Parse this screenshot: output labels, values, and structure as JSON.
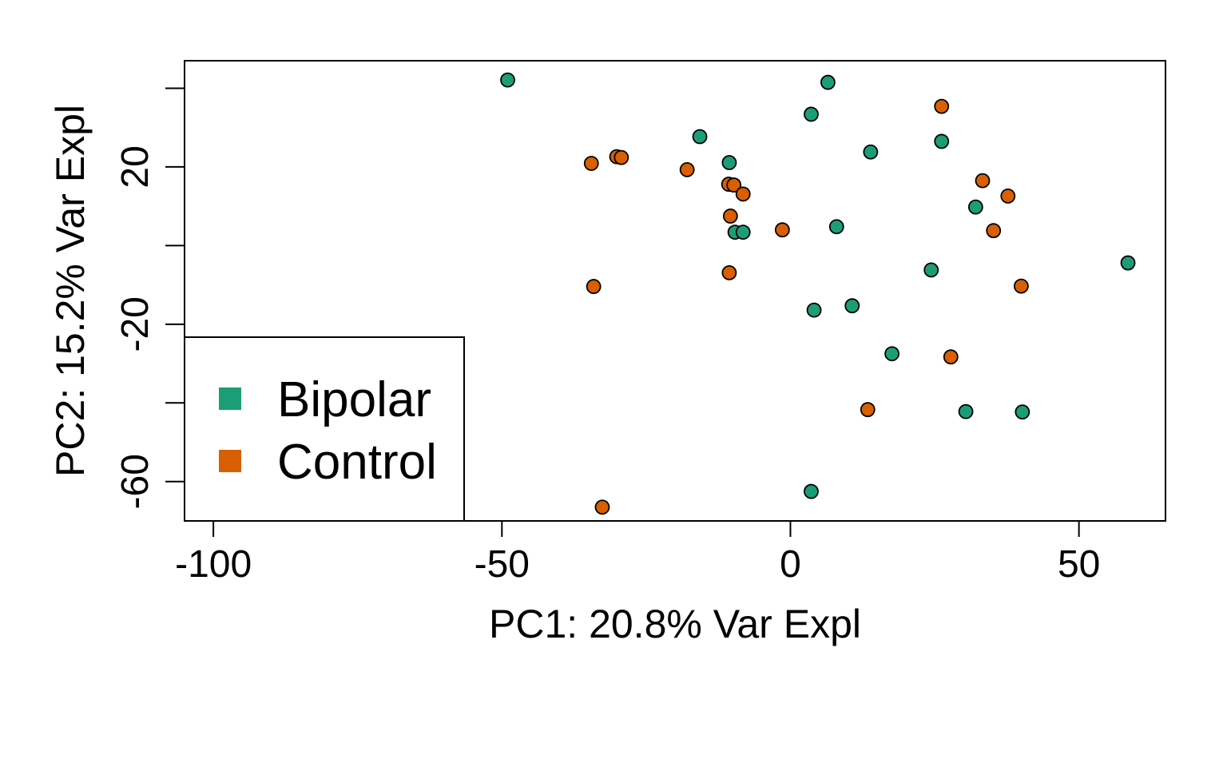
{
  "chart_data": {
    "type": "scatter",
    "title": "",
    "xlabel": "PC1: 20.8% Var Expl",
    "ylabel": "PC2: 15.2% Var Expl",
    "xlim": [
      -105,
      65
    ],
    "ylim": [
      -70,
      47
    ],
    "xticks": [
      -100,
      -50,
      0,
      50
    ],
    "xtick_labels": [
      "-100",
      "-50",
      "0",
      "50"
    ],
    "yticks": [
      -60,
      -40,
      -20,
      0,
      20,
      40
    ],
    "ytick_labels": [
      "-60",
      "",
      "-20",
      "",
      "20",
      ""
    ],
    "grid": false,
    "legend_position": "bottom-left",
    "series": [
      {
        "name": "Bipolar",
        "color": "#1b9e77",
        "points": [
          {
            "x": -49.0,
            "y": 42.1
          },
          {
            "x": 6.5,
            "y": 41.5
          },
          {
            "x": 3.6,
            "y": 33.4
          },
          {
            "x": -15.7,
            "y": 27.7
          },
          {
            "x": 13.9,
            "y": 23.8
          },
          {
            "x": 26.2,
            "y": 26.5
          },
          {
            "x": -10.6,
            "y": 21.1
          },
          {
            "x": 32.1,
            "y": 9.8
          },
          {
            "x": 8.0,
            "y": 4.8
          },
          {
            "x": -9.6,
            "y": 3.4
          },
          {
            "x": -8.2,
            "y": 3.4
          },
          {
            "x": 58.5,
            "y": -4.4
          },
          {
            "x": 24.4,
            "y": -6.2
          },
          {
            "x": 10.7,
            "y": -15.3
          },
          {
            "x": 4.1,
            "y": -16.4
          },
          {
            "x": 17.6,
            "y": -27.5
          },
          {
            "x": 30.4,
            "y": -42.2
          },
          {
            "x": 40.2,
            "y": -42.3
          },
          {
            "x": 3.6,
            "y": -62.5
          }
        ]
      },
      {
        "name": "Control",
        "color": "#d95f02",
        "points": [
          {
            "x": 26.2,
            "y": 35.4
          },
          {
            "x": -30.1,
            "y": 22.6
          },
          {
            "x": -29.3,
            "y": 22.4
          },
          {
            "x": -34.5,
            "y": 20.9
          },
          {
            "x": -17.9,
            "y": 19.3
          },
          {
            "x": -10.7,
            "y": 15.6
          },
          {
            "x": -9.8,
            "y": 15.4
          },
          {
            "x": -8.2,
            "y": 13.1
          },
          {
            "x": 33.3,
            "y": 16.5
          },
          {
            "x": 37.7,
            "y": 12.6
          },
          {
            "x": -10.4,
            "y": 7.5
          },
          {
            "x": -1.4,
            "y": 4.0
          },
          {
            "x": 35.2,
            "y": 3.8
          },
          {
            "x": -10.6,
            "y": -6.9
          },
          {
            "x": -34.1,
            "y": -10.4
          },
          {
            "x": 40.0,
            "y": -10.3
          },
          {
            "x": 27.8,
            "y": -28.3
          },
          {
            "x": 13.4,
            "y": -41.7
          },
          {
            "x": -32.6,
            "y": -66.5
          }
        ]
      }
    ]
  }
}
